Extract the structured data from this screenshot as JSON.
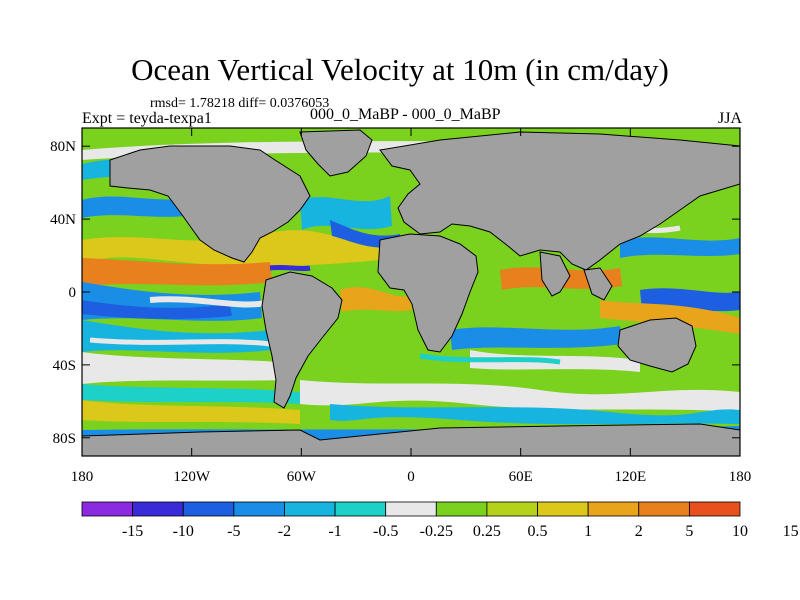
{
  "title": "Ocean Vertical Velocity at 10m (in cm/day)",
  "stats_line": "rmsd= 1.78218 diff= 0.0376053",
  "left_label": "Expt = teyda-texpa1",
  "center_label": "000_0_MaBP - 000_0_MaBP",
  "right_label": "JJA",
  "lat_ticks": [
    {
      "label": "80N",
      "lat": 80
    },
    {
      "label": "40N",
      "lat": 40
    },
    {
      "label": "0",
      "lat": 0
    },
    {
      "label": "40S",
      "lat": -40
    },
    {
      "label": "80S",
      "lat": -80
    }
  ],
  "lon_ticks": [
    {
      "label": "180",
      "lon": -180
    },
    {
      "label": "120W",
      "lon": -120
    },
    {
      "label": "60W",
      "lon": -60
    },
    {
      "label": "0",
      "lon": 0
    },
    {
      "label": "60E",
      "lon": 60
    },
    {
      "label": "120E",
      "lon": 120
    },
    {
      "label": "180",
      "lon": 180
    }
  ],
  "colorbar": {
    "colors": [
      "#8a2be2",
      "#3a2bd8",
      "#1d5fe0",
      "#1a8ee6",
      "#18b4e0",
      "#1dd0c8",
      "#e8e8e8",
      "#7ad11e",
      "#b4d21a",
      "#dcc81a",
      "#e8a41a",
      "#e8801e",
      "#e8501e"
    ],
    "labels": [
      "-15",
      "-10",
      "-5",
      "-2",
      "-1",
      "-0.5",
      "-0.25",
      "0.25",
      "0.5",
      "1",
      "2",
      "5",
      "10",
      "15"
    ]
  },
  "land_color": "#a0a0a0",
  "map_extent": {
    "lon_min": -180,
    "lon_max": 180,
    "lat_min": -90,
    "lat_max": 90
  }
}
